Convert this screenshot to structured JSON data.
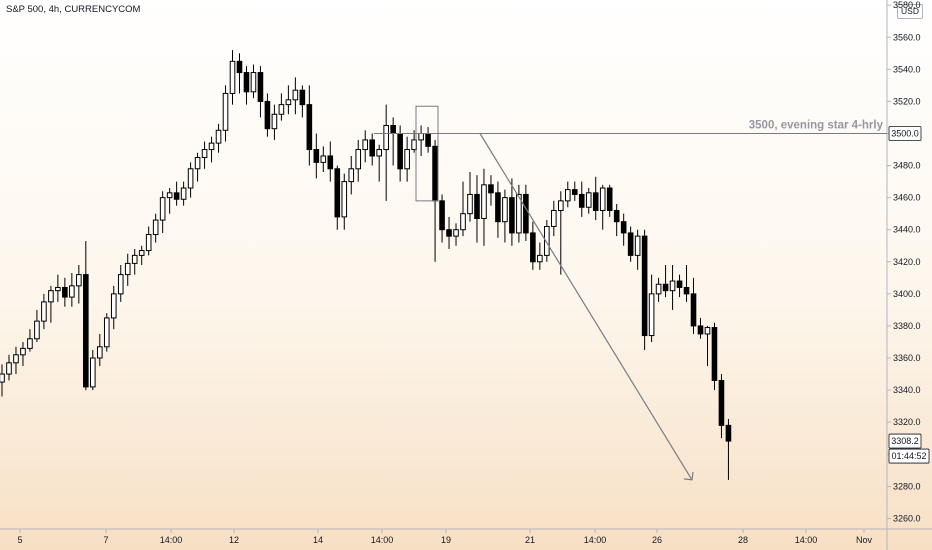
{
  "header": {
    "title": "S&P 500, 4h, CURRENCYCOM",
    "currency": "USD"
  },
  "chart_data": {
    "type": "candlestick",
    "ylim": [
      3254,
      3582
    ],
    "y_ticks": [
      "3260.0",
      "3280.0",
      "3300.0",
      "3320.0",
      "3340.0",
      "3360.0",
      "3380.0",
      "3400.0",
      "3420.0",
      "3440.0",
      "3460.0",
      "3480.0",
      "3500.0",
      "3520.0",
      "3540.0",
      "3560.0",
      "3580.0"
    ],
    "x_ticks": [
      "5",
      "7",
      "14:00",
      "12",
      "14",
      "14:00",
      "19",
      "21",
      "14:00",
      "26",
      "28",
      "14:00",
      "Nov"
    ],
    "last_price_label": "3308.2",
    "countdown_label": "01:44:52",
    "level_label": "3500.0",
    "annotation": "3500, evening star 4-hrly",
    "level_value": 3500,
    "colors": {
      "candle": "#000000",
      "line": "#787b86",
      "label_bg": "#ffffff"
    },
    "candles": [
      [
        3345,
        3356,
        3336,
        3350
      ],
      [
        3350,
        3362,
        3346,
        3357
      ],
      [
        3357,
        3367,
        3350,
        3362
      ],
      [
        3362,
        3370,
        3355,
        3366
      ],
      [
        3366,
        3378,
        3364,
        3372
      ],
      [
        3372,
        3390,
        3370,
        3383
      ],
      [
        3383,
        3400,
        3378,
        3395
      ],
      [
        3395,
        3405,
        3382,
        3402
      ],
      [
        3402,
        3412,
        3395,
        3404
      ],
      [
        3404,
        3410,
        3392,
        3398
      ],
      [
        3398,
        3413,
        3392,
        3405
      ],
      [
        3405,
        3418,
        3394,
        3412
      ],
      [
        3412,
        3433,
        3340,
        3342
      ],
      [
        3342,
        3365,
        3340,
        3360
      ],
      [
        3360,
        3375,
        3355,
        3367
      ],
      [
        3367,
        3388,
        3364,
        3385
      ],
      [
        3385,
        3405,
        3378,
        3400
      ],
      [
        3400,
        3418,
        3395,
        3412
      ],
      [
        3412,
        3425,
        3405,
        3419
      ],
      [
        3419,
        3428,
        3412,
        3424
      ],
      [
        3424,
        3430,
        3418,
        3427
      ],
      [
        3427,
        3442,
        3424,
        3437
      ],
      [
        3437,
        3450,
        3432,
        3446
      ],
      [
        3446,
        3464,
        3438,
        3460
      ],
      [
        3460,
        3466,
        3450,
        3463
      ],
      [
        3463,
        3470,
        3455,
        3459
      ],
      [
        3459,
        3470,
        3455,
        3466
      ],
      [
        3466,
        3482,
        3460,
        3478
      ],
      [
        3478,
        3488,
        3470,
        3485
      ],
      [
        3485,
        3495,
        3478,
        3490
      ],
      [
        3490,
        3498,
        3482,
        3494
      ],
      [
        3494,
        3506,
        3488,
        3502
      ],
      [
        3502,
        3530,
        3495,
        3525
      ],
      [
        3525,
        3552,
        3518,
        3545
      ],
      [
        3545,
        3550,
        3525,
        3538
      ],
      [
        3538,
        3542,
        3518,
        3526
      ],
      [
        3526,
        3543,
        3522,
        3538
      ],
      [
        3538,
        3542,
        3510,
        3520
      ],
      [
        3520,
        3525,
        3498,
        3503
      ],
      [
        3503,
        3518,
        3496,
        3512
      ],
      [
        3512,
        3525,
        3508,
        3518
      ],
      [
        3518,
        3530,
        3512,
        3521
      ],
      [
        3521,
        3535,
        3512,
        3527
      ],
      [
        3527,
        3530,
        3510,
        3518
      ],
      [
        3518,
        3530,
        3480,
        3490
      ],
      [
        3490,
        3500,
        3472,
        3482
      ],
      [
        3482,
        3492,
        3476,
        3486
      ],
      [
        3486,
        3495,
        3470,
        3478
      ],
      [
        3478,
        3480,
        3440,
        3448
      ],
      [
        3448,
        3475,
        3440,
        3470
      ],
      [
        3470,
        3486,
        3462,
        3478
      ],
      [
        3478,
        3496,
        3470,
        3490
      ],
      [
        3490,
        3502,
        3482,
        3496
      ],
      [
        3496,
        3500,
        3480,
        3486
      ],
      [
        3486,
        3493,
        3470,
        3490
      ],
      [
        3490,
        3518,
        3458,
        3505
      ],
      [
        3505,
        3510,
        3480,
        3500
      ],
      [
        3500,
        3505,
        3470,
        3478
      ],
      [
        3478,
        3498,
        3470,
        3490
      ],
      [
        3490,
        3502,
        3488,
        3496
      ],
      [
        3496,
        3505,
        3486,
        3500
      ],
      [
        3500,
        3504,
        3488,
        3492
      ],
      [
        3492,
        3496,
        3420,
        3458
      ],
      [
        3458,
        3462,
        3432,
        3440
      ],
      [
        3440,
        3448,
        3428,
        3436
      ],
      [
        3436,
        3444,
        3430,
        3440
      ],
      [
        3440,
        3470,
        3436,
        3450
      ],
      [
        3450,
        3476,
        3445,
        3462
      ],
      [
        3462,
        3474,
        3432,
        3447
      ],
      [
        3447,
        3478,
        3430,
        3468
      ],
      [
        3468,
        3474,
        3455,
        3463
      ],
      [
        3463,
        3470,
        3435,
        3445
      ],
      [
        3445,
        3465,
        3432,
        3460
      ],
      [
        3460,
        3472,
        3430,
        3438
      ],
      [
        3438,
        3468,
        3432,
        3462
      ],
      [
        3462,
        3468,
        3433,
        3438
      ],
      [
        3438,
        3445,
        3415,
        3420
      ],
      [
        3420,
        3432,
        3415,
        3424
      ],
      [
        3424,
        3446,
        3420,
        3442
      ],
      [
        3442,
        3458,
        3436,
        3452
      ],
      [
        3452,
        3464,
        3412,
        3458
      ],
      [
        3458,
        3470,
        3454,
        3465
      ],
      [
        3465,
        3470,
        3458,
        3462
      ],
      [
        3462,
        3470,
        3448,
        3454
      ],
      [
        3454,
        3466,
        3450,
        3463
      ],
      [
        3463,
        3473,
        3446,
        3452
      ],
      [
        3452,
        3468,
        3440,
        3466
      ],
      [
        3466,
        3468,
        3448,
        3452
      ],
      [
        3452,
        3456,
        3436,
        3445
      ],
      [
        3445,
        3450,
        3430,
        3438
      ],
      [
        3438,
        3442,
        3420,
        3424
      ],
      [
        3424,
        3440,
        3415,
        3436
      ],
      [
        3436,
        3440,
        3365,
        3374
      ],
      [
        3374,
        3412,
        3370,
        3400
      ],
      [
        3400,
        3410,
        3395,
        3406
      ],
      [
        3406,
        3418,
        3398,
        3402
      ],
      [
        3402,
        3418,
        3390,
        3408
      ],
      [
        3408,
        3412,
        3398,
        3404
      ],
      [
        3404,
        3418,
        3395,
        3400
      ],
      [
        3400,
        3410,
        3375,
        3380
      ],
      [
        3380,
        3385,
        3372,
        3375
      ],
      [
        3375,
        3380,
        3355,
        3379
      ],
      [
        3379,
        3382,
        3340,
        3346
      ],
      [
        3346,
        3350,
        3310,
        3318
      ],
      [
        3318,
        3322,
        3284,
        3308.2
      ]
    ]
  }
}
